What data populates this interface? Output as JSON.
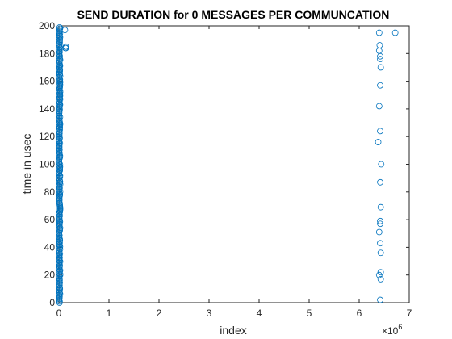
{
  "chart_data": {
    "type": "scatter",
    "title": "SEND DURATION for 0 MESSAGES PER COMMUNCATION",
    "xlabel": "index",
    "ylabel": "time in usec",
    "xlim": [
      0,
      7
    ],
    "ylim": [
      0,
      200
    ],
    "x_unit_exponent": "6",
    "x_tick_labels": [
      "0",
      "1",
      "2",
      "3",
      "4",
      "5",
      "6",
      "7"
    ],
    "y_tick_labels": [
      "0",
      "20",
      "40",
      "60",
      "80",
      "100",
      "120",
      "140",
      "160",
      "180",
      "200"
    ],
    "grid": false,
    "marker_color": "#0072BD",
    "series": [
      {
        "x": [
          0.12,
          0.14,
          0.14,
          0.13,
          6.4,
          6.42,
          6.43,
          6.42,
          6.4,
          6.42,
          6.38,
          6.44,
          6.42,
          6.43,
          6.42,
          6.42,
          6.4,
          6.42,
          6.43,
          6.43,
          6.4,
          6.43,
          6.42,
          6.4,
          6.41,
          6.42,
          6.72
        ],
        "y": [
          197,
          185,
          184,
          184,
          182,
          178,
          170,
          157,
          142,
          124,
          116,
          100,
          87,
          69,
          59,
          57,
          51,
          43,
          36,
          22,
          20,
          17,
          2,
          195,
          186,
          176,
          195
        ]
      }
    ],
    "dense_column": {
      "x_min": 0.0,
      "x_max": 0.025,
      "y_min": 0,
      "y_max": 199
    }
  }
}
